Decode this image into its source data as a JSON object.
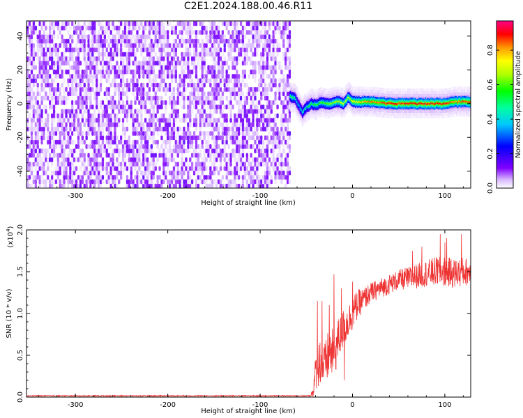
{
  "title": "C2E1.2024.188.00.46.R11",
  "colors": {
    "snr_line": "#ee3333",
    "spectrogram_noise": "#7f00ff",
    "axis": "#000000"
  },
  "chart_data": [
    {
      "type": "heatmap",
      "name": "spectrogram",
      "xlabel": "Height of straight line (km)",
      "ylabel": "Frequency (Hz)",
      "xlim": [
        -353,
        128
      ],
      "ylim": [
        -50,
        49
      ],
      "xticks": [
        -300,
        -200,
        -100,
        0,
        100
      ],
      "xtick_labels": [
        "-300",
        "-200",
        "-100",
        "0",
        "100"
      ],
      "yticks": [
        -40,
        -20,
        0,
        20,
        40
      ],
      "ytick_labels": [
        "-40",
        "-20",
        "0",
        "20",
        "40"
      ],
      "noise_region_x": [
        -353,
        -68
      ],
      "signal_trace": {
        "x": [
          -68,
          -63,
          -60,
          -55,
          -50,
          -45,
          -40,
          -35,
          -30,
          -25,
          -20,
          -15,
          -10,
          -5,
          0,
          10,
          20,
          40,
          60,
          80,
          100,
          110,
          120,
          128
        ],
        "freq": [
          4,
          3,
          0,
          -5,
          -2,
          0,
          -1,
          1,
          0,
          0,
          1,
          1,
          0,
          4,
          1,
          1,
          1,
          0,
          0,
          0,
          0,
          1,
          1,
          1
        ],
        "amplitude": [
          0.55,
          0.5,
          0.4,
          0.45,
          0.5,
          0.55,
          0.55,
          0.6,
          0.6,
          0.65,
          0.65,
          0.7,
          0.7,
          0.7,
          0.75,
          0.8,
          0.85,
          0.9,
          0.9,
          0.92,
          0.9,
          0.85,
          0.88,
          0.9
        ]
      },
      "colorbar": {
        "label": "Normalized spectral amplitude",
        "range": [
          0.0,
          0.97
        ],
        "ticks": [
          0.0,
          0.2,
          0.4,
          0.6,
          0.8
        ],
        "tick_labels": [
          "0.0",
          "0.2",
          "0.4",
          "0.6",
          "0.8"
        ]
      }
    },
    {
      "type": "line",
      "name": "snr",
      "xlabel": "Height of straight line (km)",
      "ylabel": "SNR (10 * v/v)",
      "y_multiplier": "(x10",
      "y_multiplier_exp": "4",
      "y_multiplier_close": ")",
      "xlim": [
        -353,
        128
      ],
      "ylim": [
        0.0,
        2.0
      ],
      "xticks": [
        -300,
        -200,
        -100,
        0,
        100
      ],
      "xtick_labels": [
        "-300",
        "-200",
        "-100",
        "0",
        "100"
      ],
      "yticks": [
        0.0,
        0.5,
        1.0,
        1.5,
        2.0
      ],
      "ytick_labels": [
        "0.0",
        "0.5",
        "1.0",
        "1.5",
        "2.0"
      ],
      "series": [
        {
          "x": [
            -353,
            -60,
            -45,
            -42,
            -40,
            -38,
            -35,
            -32,
            -30,
            -25,
            -20,
            -18,
            -15,
            -10,
            -5,
            0,
            5,
            10,
            20,
            30,
            40,
            50,
            60,
            70,
            80,
            90,
            100,
            110,
            120,
            128
          ],
          "y": [
            0.015,
            0.015,
            0.02,
            0.1,
            0.3,
            0.35,
            0.45,
            0.4,
            0.35,
            0.55,
            0.5,
            0.6,
            0.7,
            0.8,
            0.9,
            1.0,
            1.1,
            1.15,
            1.25,
            1.3,
            1.35,
            1.4,
            1.42,
            1.45,
            1.48,
            1.5,
            1.5,
            1.48,
            1.5,
            1.5
          ],
          "noise": [
            0.0,
            0.005,
            0.02,
            0.1,
            0.2,
            0.25,
            0.3,
            0.3,
            0.3,
            0.3,
            0.3,
            0.3,
            0.25,
            0.25,
            0.2,
            0.2,
            0.18,
            0.15,
            0.12,
            0.12,
            0.12,
            0.12,
            0.14,
            0.15,
            0.16,
            0.18,
            0.18,
            0.18,
            0.18,
            0.15
          ]
        }
      ],
      "spikes": {
        "x": [
          -38,
          -33,
          -25,
          -20,
          -12,
          -9,
          0,
          65,
          75,
          92,
          95,
          100,
          102,
          118,
          125
        ],
        "y": [
          1.15,
          1.15,
          1.1,
          1.47,
          1.3,
          0.2,
          1.38,
          1.75,
          1.8,
          1.65,
          1.95,
          1.85,
          1.9,
          1.95,
          1.55
        ]
      }
    }
  ]
}
